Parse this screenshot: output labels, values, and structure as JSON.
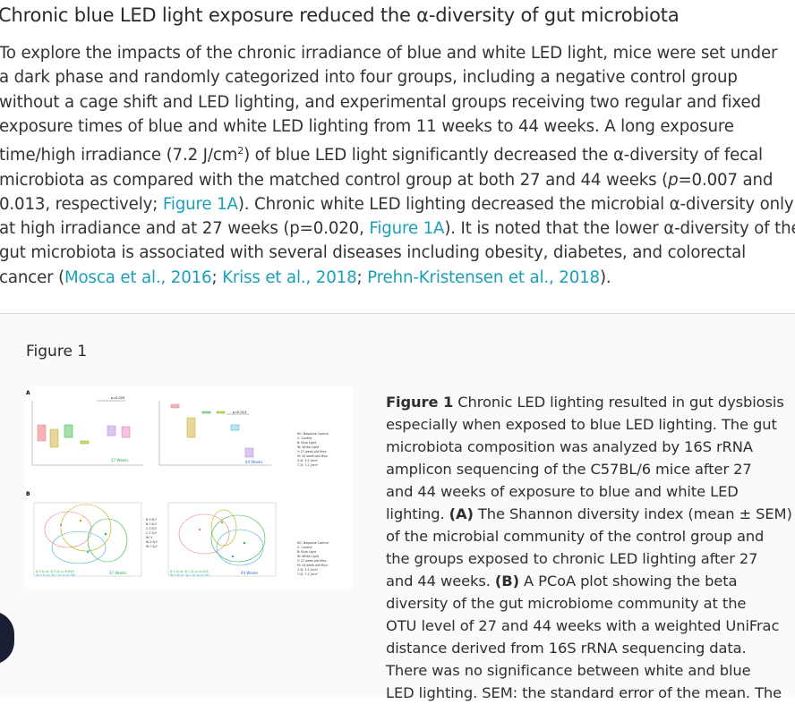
{
  "article": {
    "heading": "Chronic blue LED light exposure reduced the α-diversity of gut microbiota",
    "paragraph": {
      "l1": "To explore the impacts of the chronic irradiance of blue and white LED light, mice were set under",
      "l2": "a dark phase and randomly categorized into four groups, including a negative control group",
      "l3": "without a cage shift and LED lighting, and experimental groups receiving two regular and fixed",
      "l4": "exposure times of blue and white LED lighting from 11 weeks to 44 weeks. A long exposure",
      "l5a": "time/high irradiance (7.2 J/cm",
      "l5sup": "2",
      "l5b": ") of blue LED light significantly decreased the α-diversity of fecal",
      "l6a": "microbiota as compared with the matched control group at both 27 and 44 weeks (",
      "l6i": "p",
      "l6b": "=0.007 and",
      "l7a": "0.013, respectively; ",
      "l7link": "Figure 1A",
      "l7b": "). Chronic white LED lighting decreased the microbial α-diversity only",
      "l8a": "at high irradiance and at 27 weeks (p=0.020, ",
      "l8link": "Figure 1A",
      "l8b": "). It is noted that the lower α-diversity of the",
      "l9": "gut microbiota is associated with several diseases including obesity, diabetes, and colorectal",
      "l10a": "cancer (",
      "cite1": "Mosca et al., 2016",
      "sep1": "; ",
      "cite2": "Kriss et al., 2018",
      "sep2": "; ",
      "cite3": "Prehn-Kristensen et al., 2018",
      "l10b": ")."
    }
  },
  "figure": {
    "label": "Figure 1",
    "panel_a": "A",
    "panel_b": "B",
    "pval_27": "p=0.020",
    "pval_44": "p=0.013",
    "weeks27": "27 Weeks",
    "weeks44": "44 Weeks",
    "ann_27_1": "B-3.5J vs. B-7.2J: p=0.899",
    "ann_27_2": "W-3.5J vs. W-7.2J: p=0.780",
    "ann_44_1": "B-3.5J vs. B-7.2J: p=0.203",
    "ann_44_2": "W-3.5J vs. W-7.2J: p=0.183",
    "legend": [
      "NC: Negative Control",
      "C: Control",
      "B: Blue Light",
      "W: White Light",
      "Y: 27 week-old Mice",
      "M: 44 week-old Mice",
      "3.5J: 3.5 J/cm²",
      "7.2J: 7.2 J/cm²"
    ],
    "group_legend": [
      "B-3.5J-Y",
      "B-7.2J-Y",
      "C-3.5J-Y",
      "C-7.2J-Y",
      "NC-Y",
      "W-3.5J-Y",
      "W-7.2J-Y"
    ],
    "caption": {
      "label": "Figure 1",
      "l1": " Chronic LED lighting resulted in gut dysbiosis",
      "l2": "especially when exposed to blue LED lighting. The gut",
      "l3": "microbiota composition was analyzed by 16S rRNA",
      "l4": "amplicon sequencing of the C57BL/6 mice after 27",
      "l5": "and 44 weeks of exposure to blue and white LED",
      "l6a": "lighting. ",
      "l6b": "(A)",
      "l6c": " The Shannon diversity index (mean ± SEM)",
      "l7": "of the microbial community of the control group and",
      "l8": "the groups exposed to chronic LED lighting after 27",
      "l9a": "and 44 weeks. ",
      "l9b": "(B)",
      "l9c": " A PCoA plot showing the beta",
      "l10": "diversity of the gut microbiome community at the",
      "l11": "OTU level of 27 and 44 weeks with a weighted UniFrac",
      "l12": "distance derived from 16S rRNA sequencing data.",
      "l13": "There was no significance between white and blue",
      "l14": "LED lighting. SEM: the standard error of the mean. The"
    }
  },
  "colors": {
    "link": "#1a9fb8",
    "nc": "#e87f7f",
    "c": "#b8b000",
    "b": "#2ab34a",
    "w": "#b57fe0",
    "fab": "#1a1f36"
  }
}
